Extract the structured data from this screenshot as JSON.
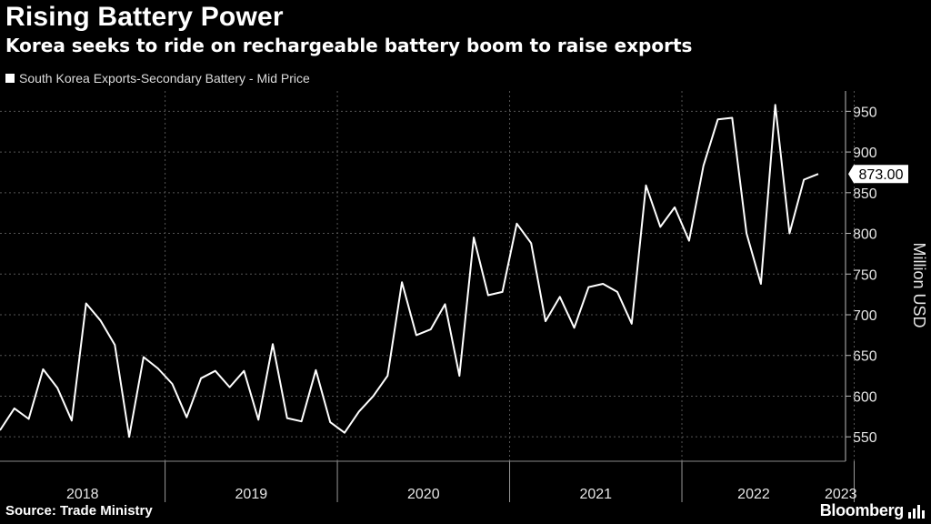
{
  "title": "Rising Battery Power",
  "subtitle": "Korea seeks to ride on rechargeable battery boom to raise exports",
  "source": "Source: Trade Ministry",
  "brand": "Bloomberg",
  "brand_icon": "bloomberg-chart-icon",
  "colors": {
    "background": "#000000",
    "line": "#ffffff",
    "grid": "#555555"
  },
  "chart_data": {
    "type": "line",
    "title": "Rising Battery Power",
    "subtitle": "Korea seeks to ride on rechargeable battery boom to raise exports",
    "legend": [
      "South Korea Exports-Secondary Battery - Mid Price"
    ],
    "ylabel": "Million USD",
    "xlabel": "",
    "ylim": [
      520,
      975
    ],
    "yticks": [
      550,
      600,
      650,
      700,
      750,
      800,
      850,
      900,
      950
    ],
    "x_years": [
      "2018",
      "2019",
      "2020",
      "2021",
      "2022",
      "2023"
    ],
    "last_value_label": "873.00",
    "series": [
      {
        "name": "South Korea Exports-Secondary Battery - Mid Price",
        "start": "2018-01",
        "frequency": "monthly",
        "values": [
          558,
          585,
          572,
          633,
          610,
          570,
          714,
          693,
          663,
          550,
          648,
          634,
          615,
          574,
          622,
          631,
          611,
          631,
          571,
          664,
          573,
          569,
          632,
          568,
          555,
          581,
          600,
          625,
          740,
          675,
          682,
          713,
          625,
          795,
          724,
          728,
          812,
          788,
          692,
          722,
          684,
          734,
          738,
          728,
          689,
          859,
          808,
          832,
          791,
          883,
          940,
          942,
          800,
          738,
          958,
          800,
          866,
          873
        ]
      }
    ]
  }
}
